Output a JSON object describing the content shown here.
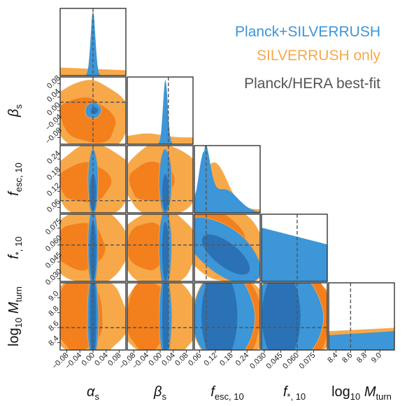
{
  "chart_data": {
    "type": "corner",
    "parameters": [
      {
        "id": "alpha_s",
        "label": "α",
        "label_sub": "s",
        "best_fit": 0.0,
        "range": [
          -0.1,
          0.1
        ],
        "ticks": [
          -0.08,
          -0.04,
          0.0,
          0.04,
          0.08
        ],
        "tick_labels": [
          "−0.08",
          "−0.04",
          "0.00",
          "0.04",
          "0.08"
        ]
      },
      {
        "id": "beta_s",
        "label": "β",
        "label_sub": "s",
        "best_fit": 0.025,
        "range": [
          -0.1,
          0.1
        ],
        "ticks": [
          -0.08,
          -0.04,
          0.0,
          0.04,
          0.08
        ],
        "tick_labels": [
          "−0.08",
          "−0.04",
          "0.00",
          "0.04",
          "0.08"
        ]
      },
      {
        "id": "f_esc10",
        "label": "f",
        "label_sub": "esc, 10",
        "best_fit": 0.085,
        "range": [
          0.04,
          0.29
        ],
        "ticks": [
          0.06,
          0.12,
          0.18,
          0.24
        ],
        "tick_labels": [
          "0.06",
          "0.12",
          "0.18",
          "0.24"
        ]
      },
      {
        "id": "f_star10",
        "label": "f",
        "label_sub": "*, 10",
        "best_fit": 0.06,
        "range": [
          0.0275,
          0.0875
        ],
        "ticks": [
          0.03,
          0.045,
          0.06,
          0.075
        ],
        "tick_labels": [
          "0.030",
          "0.045",
          "0.060",
          "0.075"
        ]
      },
      {
        "id": "log10_Mturn",
        "label": "log",
        "label_sub": "10",
        "label_tail": " M",
        "label_tail_sub": "turn",
        "best_fit": 8.6,
        "range": [
          8.3,
          9.2
        ],
        "ticks": [
          8.4,
          8.6,
          8.8,
          9.0
        ],
        "tick_labels": [
          "8.4",
          "8.6",
          "8.8",
          "9.0"
        ]
      }
    ],
    "series": [
      {
        "name": "Planck+SILVERRUSH",
        "color": "#3c96d8",
        "dark": "#2a72b5",
        "line": "#6fa6d6"
      },
      {
        "name": "SILVERRUSH only",
        "color": "#f7a94a",
        "dark": "#f47f1d",
        "line": "#e8a04c"
      },
      {
        "name": "Planck/HERA best-fit",
        "color": "#555555"
      }
    ],
    "legend_position": "top-right"
  }
}
